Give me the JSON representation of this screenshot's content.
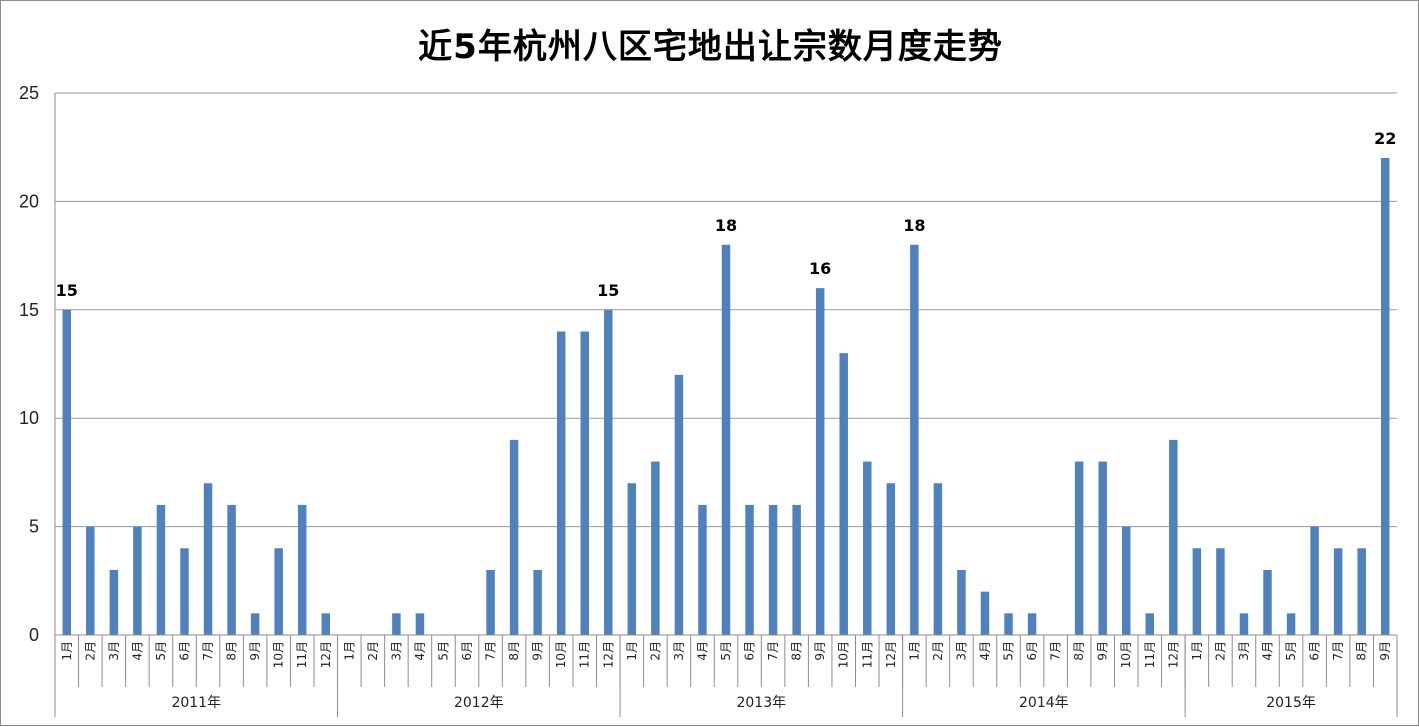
{
  "chart_data": {
    "type": "bar",
    "title": "近5年杭州八区宅地出让宗数月度走势",
    "ylim": [
      0,
      25
    ],
    "y_ticks": [
      0,
      5,
      10,
      15,
      20,
      25
    ],
    "grid": true,
    "bar_color": "#4F81BD",
    "groups": [
      {
        "label": "2011年",
        "categories": [
          "1月",
          "2月",
          "3月",
          "4月",
          "5月",
          "6月",
          "7月",
          "8月",
          "9月",
          "10月",
          "11月",
          "12月"
        ],
        "values": [
          15,
          5,
          3,
          5,
          6,
          4,
          7,
          6,
          1,
          4,
          6,
          1
        ]
      },
      {
        "label": "2012年",
        "categories": [
          "1月",
          "2月",
          "3月",
          "4月",
          "5月",
          "6月",
          "7月",
          "8月",
          "9月",
          "10月",
          "11月",
          "12月"
        ],
        "values": [
          0,
          0,
          1,
          1,
          0,
          0,
          3,
          9,
          3,
          14,
          14,
          15
        ]
      },
      {
        "label": "2013年",
        "categories": [
          "1月",
          "2月",
          "3月",
          "4月",
          "5月",
          "6月",
          "7月",
          "8月",
          "9月",
          "10月",
          "11月",
          "12月"
        ],
        "values": [
          7,
          8,
          12,
          6,
          18,
          6,
          6,
          6,
          16,
          13,
          8,
          7
        ]
      },
      {
        "label": "2014年",
        "categories": [
          "1月",
          "2月",
          "3月",
          "4月",
          "5月",
          "6月",
          "7月",
          "8月",
          "9月",
          "10月",
          "11月",
          "12月"
        ],
        "values": [
          18,
          7,
          3,
          2,
          1,
          1,
          0,
          8,
          8,
          5,
          1,
          9
        ]
      },
      {
        "label": "2015年",
        "categories": [
          "1月",
          "2月",
          "3月",
          "4月",
          "5月",
          "6月",
          "7月",
          "8月",
          "9月"
        ],
        "values": [
          4,
          4,
          1,
          3,
          1,
          5,
          4,
          4,
          22
        ]
      }
    ],
    "data_labels": [
      {
        "group": 0,
        "index": 0,
        "text": "15"
      },
      {
        "group": 1,
        "index": 11,
        "text": "15"
      },
      {
        "group": 2,
        "index": 4,
        "text": "18"
      },
      {
        "group": 2,
        "index": 8,
        "text": "16"
      },
      {
        "group": 3,
        "index": 0,
        "text": "18"
      },
      {
        "group": 4,
        "index": 8,
        "text": "22"
      }
    ]
  }
}
